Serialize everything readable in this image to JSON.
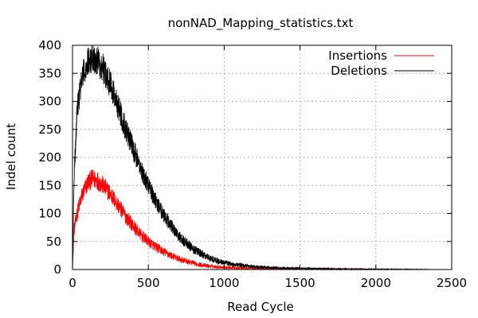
{
  "chart_data": {
    "type": "line",
    "title": "nonNAD_Mapping_statistics.txt",
    "xlabel": "Read Cycle",
    "ylabel": "Indel count",
    "xlim": [
      0,
      2500
    ],
    "ylim": [
      0,
      400
    ],
    "x_ticks": [
      "0",
      "500",
      "1000",
      "1500",
      "2000",
      "2500"
    ],
    "y_ticks": [
      "0",
      "50",
      "100",
      "150",
      "200",
      "250",
      "300",
      "350",
      "400"
    ],
    "grid": true,
    "legend_position": "top-right",
    "series": [
      {
        "name": "Insertions",
        "color": "#ff0000",
        "x": [
          0,
          10,
          30,
          60,
          100,
          130,
          160,
          200,
          250,
          300,
          350,
          400,
          450,
          500,
          550,
          600,
          650,
          700,
          750,
          800,
          850,
          900,
          950,
          1000,
          1100,
          1200,
          1300,
          1400,
          1500,
          1600,
          1700,
          1800,
          1900,
          2000,
          2100,
          2200,
          2350
        ],
        "y": [
          0,
          70,
          100,
          130,
          155,
          162,
          160,
          150,
          135,
          115,
          95,
          78,
          62,
          50,
          40,
          32,
          25,
          19,
          15,
          11,
          8,
          6,
          5,
          4,
          3,
          2,
          1.5,
          1,
          1,
          0.6,
          0.5,
          0.4,
          0.3,
          0.2,
          0.2,
          0.1,
          0
        ]
      },
      {
        "name": "Deletions",
        "color": "#000000",
        "x": [
          0,
          10,
          30,
          60,
          100,
          130,
          160,
          200,
          250,
          300,
          350,
          400,
          450,
          500,
          550,
          600,
          650,
          700,
          750,
          800,
          850,
          900,
          950,
          1000,
          1100,
          1200,
          1300,
          1400,
          1500,
          1600,
          1700,
          1800,
          1900,
          2000,
          2100,
          2200,
          2350
        ],
        "y": [
          0,
          160,
          280,
          340,
          370,
          378,
          375,
          360,
          330,
          292,
          252,
          215,
          180,
          150,
          122,
          98,
          78,
          60,
          47,
          36,
          28,
          21,
          16,
          12,
          8,
          5,
          3.5,
          2.5,
          2,
          1.5,
          1.1,
          0.8,
          0.6,
          0.4,
          0.3,
          0.2,
          0
        ]
      }
    ]
  }
}
